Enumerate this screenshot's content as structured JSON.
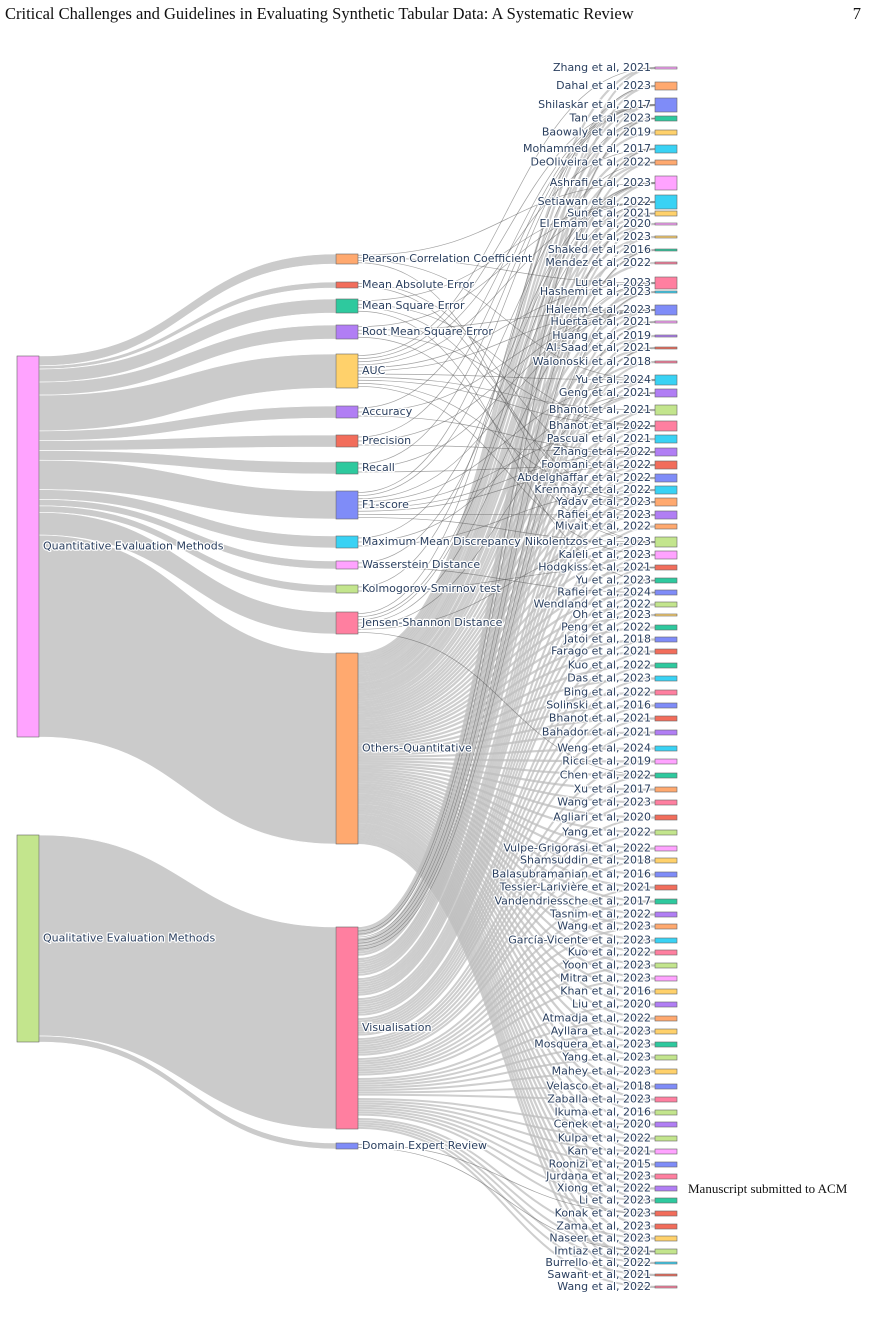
{
  "header": {
    "title": "Critical Challenges and Guidelines in Evaluating Synthetic Tabular Data: A Systematic Review",
    "page_number": "7"
  },
  "footer": {
    "note": "Manuscript submitted to ACM"
  },
  "colors": {
    "link": "#c8c8c8",
    "label": "#2a3f5f",
    "node_border": "#666666"
  },
  "sankey": {
    "categories": [
      {
        "label": "Quantitative Evaluation Methods",
        "color": "#ffa3ff"
      },
      {
        "label": "Qualitative Evaluation Methods",
        "color": "#c3e58d"
      }
    ],
    "metrics": [
      {
        "label": "Pearson Correlation Coefficient",
        "color": "#ffa96f",
        "weight": 3
      },
      {
        "label": "Mean Absolute Error",
        "color": "#f26d5b",
        "weight": 1
      },
      {
        "label": "Mean Square Error",
        "color": "#2ec99e",
        "weight": 4
      },
      {
        "label": "Root Mean Square Error",
        "color": "#b17ef4",
        "weight": 4
      },
      {
        "label": "AUC",
        "color": "#ffd16b",
        "weight": 11
      },
      {
        "label": "Accuracy",
        "color": "#b17ef4",
        "weight": 3
      },
      {
        "label": "Precision",
        "color": "#f26d5b",
        "weight": 3
      },
      {
        "label": "Recall",
        "color": "#2ec99e",
        "weight": 3
      },
      {
        "label": "F1-score",
        "color": "#7f8cf8",
        "weight": 9
      },
      {
        "label": "Maximum Mean Discrepancy",
        "color": "#39d2f4",
        "weight": 3
      },
      {
        "label": "Wasserstein Distance",
        "color": "#ffa3ff",
        "weight": 2
      },
      {
        "label": "Kolmogorov-Smirnov test",
        "color": "#c3e58d",
        "weight": 2
      },
      {
        "label": "Jensen-Shannon Distance",
        "color": "#ff7fa0",
        "weight": 7
      },
      {
        "label": "Others-Quantitative",
        "color": "#ffa96f",
        "weight": 62
      },
      {
        "label": "Visualisation",
        "color": "#ff7fa0",
        "weight": 66
      },
      {
        "label": "Domain Expert Review",
        "color": "#7f8cf8",
        "weight": 2
      }
    ],
    "papers": [
      {
        "label": "Zhang et al, 2021",
        "color": "#ffa3ff"
      },
      {
        "label": "Dahal et al, 2023",
        "color": "#ffa96f"
      },
      {
        "label": "Shilaskar et al, 2017",
        "color": "#7f8cf8"
      },
      {
        "label": "Tan et al, 2023",
        "color": "#2ec99e"
      },
      {
        "label": "Baowaly et al, 2019",
        "color": "#ffd16b"
      },
      {
        "label": "Mohammed et al, 2017",
        "color": "#39d2f4"
      },
      {
        "label": "DeOliveira et al, 2022",
        "color": "#ffa96f"
      },
      {
        "label": "Ashrafi et al, 2023",
        "color": "#ffa3ff"
      },
      {
        "label": "Setiawan et al, 2022",
        "color": "#39d2f4"
      },
      {
        "label": "Sun et al, 2021",
        "color": "#ffd16b"
      },
      {
        "label": "El Emam et al, 2020",
        "color": "#ffa3ff"
      },
      {
        "label": "Lu et al, 2023",
        "color": "#ffd16b"
      },
      {
        "label": "Shaked et al, 2016",
        "color": "#2ec99e"
      },
      {
        "label": "Mendez et al, 2022",
        "color": "#ff7fa0"
      },
      {
        "label": "Lu et al, 2023",
        "color": "#ff7fa0"
      },
      {
        "label": "Hashemi et al, 2023",
        "color": "#39d2f4"
      },
      {
        "label": "Haleem et al, 2023",
        "color": "#7f8cf8"
      },
      {
        "label": "Huerta et al, 2021",
        "color": "#ffa3ff"
      },
      {
        "label": "Huang et al, 2019",
        "color": "#b17ef4"
      },
      {
        "label": "Al-Saad et al, 2021",
        "color": "#f26d5b"
      },
      {
        "label": "Walonoski et al, 2018",
        "color": "#ff7fa0"
      },
      {
        "label": "Yu et al, 2024",
        "color": "#39d2f4"
      },
      {
        "label": "Geng et al, 2021",
        "color": "#b17ef4"
      },
      {
        "label": "Bhanot et al, 2021",
        "color": "#c3e58d"
      },
      {
        "label": "Bhanot et al, 2022",
        "color": "#ff7fa0"
      },
      {
        "label": "Pascual et al, 2021",
        "color": "#39d2f4"
      },
      {
        "label": "Zhang et al, 2022",
        "color": "#b17ef4"
      },
      {
        "label": "Foomani et al, 2022",
        "color": "#f26d5b"
      },
      {
        "label": "Abdelghaffar et al, 2022",
        "color": "#7f8cf8"
      },
      {
        "label": "Krenmayr et al, 2022",
        "color": "#39d2f4"
      },
      {
        "label": "Yadav et al, 2023",
        "color": "#ffa96f"
      },
      {
        "label": "Rafiei et al, 2023",
        "color": "#b17ef4"
      },
      {
        "label": "Mivait et al, 2022",
        "color": "#ffa96f"
      },
      {
        "label": "Nikolentzos et al, 2023",
        "color": "#c3e58d"
      },
      {
        "label": "Kaleli et al, 2023",
        "color": "#ffa3ff"
      },
      {
        "label": "Hodgkiss et al, 2021",
        "color": "#f26d5b"
      },
      {
        "label": "Yu et al, 2023",
        "color": "#2ec99e"
      },
      {
        "label": "Rafiei et al, 2024",
        "color": "#7f8cf8"
      },
      {
        "label": "Wendland et al, 2022",
        "color": "#c3e58d"
      },
      {
        "label": "Oh et al, 2023",
        "color": "#ffd16b"
      },
      {
        "label": "Peng et al, 2022",
        "color": "#2ec99e"
      },
      {
        "label": "Jatoi et al, 2018",
        "color": "#7f8cf8"
      },
      {
        "label": "Farago et al, 2021",
        "color": "#f26d5b"
      },
      {
        "label": "Kuo et al, 2022",
        "color": "#2ec99e"
      },
      {
        "label": "Das et al, 2023",
        "color": "#39d2f4"
      },
      {
        "label": "Bing et al, 2022",
        "color": "#ff7fa0"
      },
      {
        "label": "Solinski et al, 2016",
        "color": "#7f8cf8"
      },
      {
        "label": "Bhanot et al, 2021",
        "color": "#f26d5b"
      },
      {
        "label": "Bahador et al, 2021",
        "color": "#b17ef4"
      },
      {
        "label": "Weng et al, 2024",
        "color": "#39d2f4"
      },
      {
        "label": "Ricci et al, 2019",
        "color": "#ffa3ff"
      },
      {
        "label": "Chen et al, 2022",
        "color": "#2ec99e"
      },
      {
        "label": "Xu et al, 2017",
        "color": "#ffa96f"
      },
      {
        "label": "Wang et al, 2023",
        "color": "#ff7fa0"
      },
      {
        "label": "Agliari et al, 2020",
        "color": "#f26d5b"
      },
      {
        "label": "Yang et al, 2022",
        "color": "#c3e58d"
      },
      {
        "label": "Vulpe-Grigorasi et al, 2022",
        "color": "#ffa3ff"
      },
      {
        "label": "Shamsuddin et al, 2018",
        "color": "#ffd16b"
      },
      {
        "label": "Balasubramanian et al, 2016",
        "color": "#7f8cf8"
      },
      {
        "label": "Tessier-Larivière et al, 2021",
        "color": "#f26d5b"
      },
      {
        "label": "Vandendriessche et al, 2017",
        "color": "#2ec99e"
      },
      {
        "label": "Tasnim et al, 2022",
        "color": "#b17ef4"
      },
      {
        "label": "Wang et al, 2023",
        "color": "#ffa96f"
      },
      {
        "label": "García-Vicente et al, 2023",
        "color": "#39d2f4"
      },
      {
        "label": "Kuo et al, 2022",
        "color": "#ff7fa0"
      },
      {
        "label": "Yoon et al, 2023",
        "color": "#c3e58d"
      },
      {
        "label": "Mitra et al, 2023",
        "color": "#ffa3ff"
      },
      {
        "label": "Khan et al, 2016",
        "color": "#ffd16b"
      },
      {
        "label": "Liu et al, 2020",
        "color": "#b17ef4"
      },
      {
        "label": "Atmadja et al, 2022",
        "color": "#ffa96f"
      },
      {
        "label": "Ayllara et al, 2023",
        "color": "#ffd16b"
      },
      {
        "label": "Mosquera et al, 2023",
        "color": "#2ec99e"
      },
      {
        "label": "Yang et al, 2023",
        "color": "#c3e58d"
      },
      {
        "label": "Mahey et al, 2023",
        "color": "#ffd16b"
      },
      {
        "label": "Velasco et al, 2018",
        "color": "#7f8cf8"
      },
      {
        "label": "Zaballa et al, 2023",
        "color": "#ff7fa0"
      },
      {
        "label": "Ikuma et al, 2016",
        "color": "#c3e58d"
      },
      {
        "label": "Cenek et al, 2020",
        "color": "#b17ef4"
      },
      {
        "label": "Kulpa et al, 2022",
        "color": "#c3e58d"
      },
      {
        "label": "Kan et al, 2021",
        "color": "#ffa3ff"
      },
      {
        "label": "Roonizi et al, 2015",
        "color": "#7f8cf8"
      },
      {
        "label": "Jurdana et al, 2023",
        "color": "#ff7fa0"
      },
      {
        "label": "Xiong et al, 2022",
        "color": "#b17ef4"
      },
      {
        "label": "Li et al, 2023",
        "color": "#2ec99e"
      },
      {
        "label": "Konak et al, 2023",
        "color": "#f26d5b"
      },
      {
        "label": "Zama et al, 2023",
        "color": "#f26d5b"
      },
      {
        "label": "Naseer et al, 2023",
        "color": "#ffd16b"
      },
      {
        "label": "Imtiaz et al, 2021",
        "color": "#c3e58d"
      },
      {
        "label": "Burrello et al, 2022",
        "color": "#39d2f4"
      },
      {
        "label": "Sawant et al, 2021",
        "color": "#f26d5b"
      },
      {
        "label": "Wang et al, 2022",
        "color": "#ff7fa0"
      }
    ]
  }
}
